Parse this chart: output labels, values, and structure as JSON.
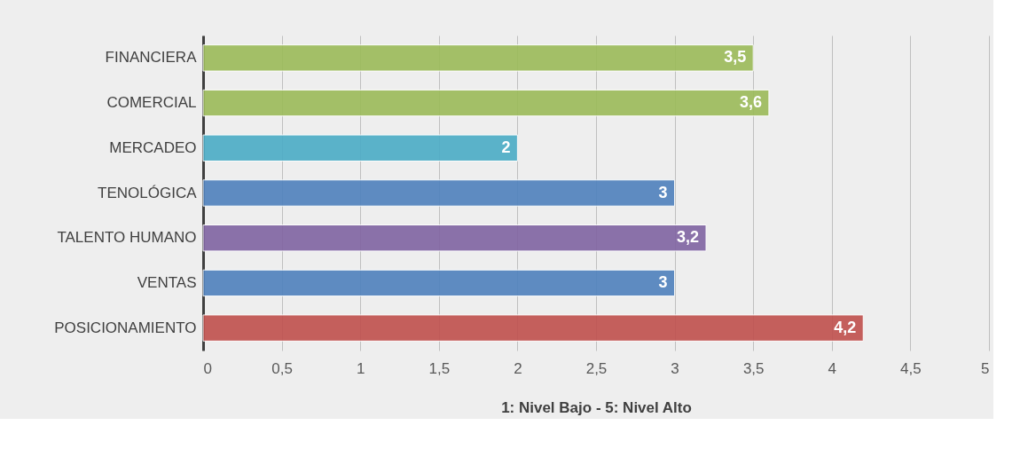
{
  "chart_data": {
    "type": "bar",
    "orientation": "horizontal",
    "categories": [
      "FINANCIERA",
      "COMERCIAL",
      "MERCADEO",
      "TENOLÓGICA",
      "TALENTO HUMANO",
      "VENTAS",
      "POSICIONAMIENTO"
    ],
    "values": [
      3.5,
      3.6,
      2,
      3,
      3.2,
      3,
      4.2
    ],
    "colors": [
      "#9bbb59",
      "#9bbb59",
      "#4bacc6",
      "#4f81bd",
      "#8064a2",
      "#4f81bd",
      "#c0504d"
    ],
    "value_labels": [
      "3,5",
      "3,6",
      "2",
      "3",
      "3,2",
      "3",
      "4,2"
    ],
    "xlim": [
      0,
      5
    ],
    "xticks": [
      0,
      {
        "value": 0.5,
        "label": "0,5"
      },
      1,
      {
        "value": 1.5,
        "label": "1,5"
      },
      2,
      {
        "value": 2.5,
        "label": "2,5"
      },
      3,
      {
        "value": 3.5,
        "label": "3,5"
      },
      4,
      {
        "value": 4.5,
        "label": "4,5"
      },
      5
    ],
    "xlabel": "1: Nivel Bajo    -    5: Nivel Alto",
    "grid": "x"
  }
}
